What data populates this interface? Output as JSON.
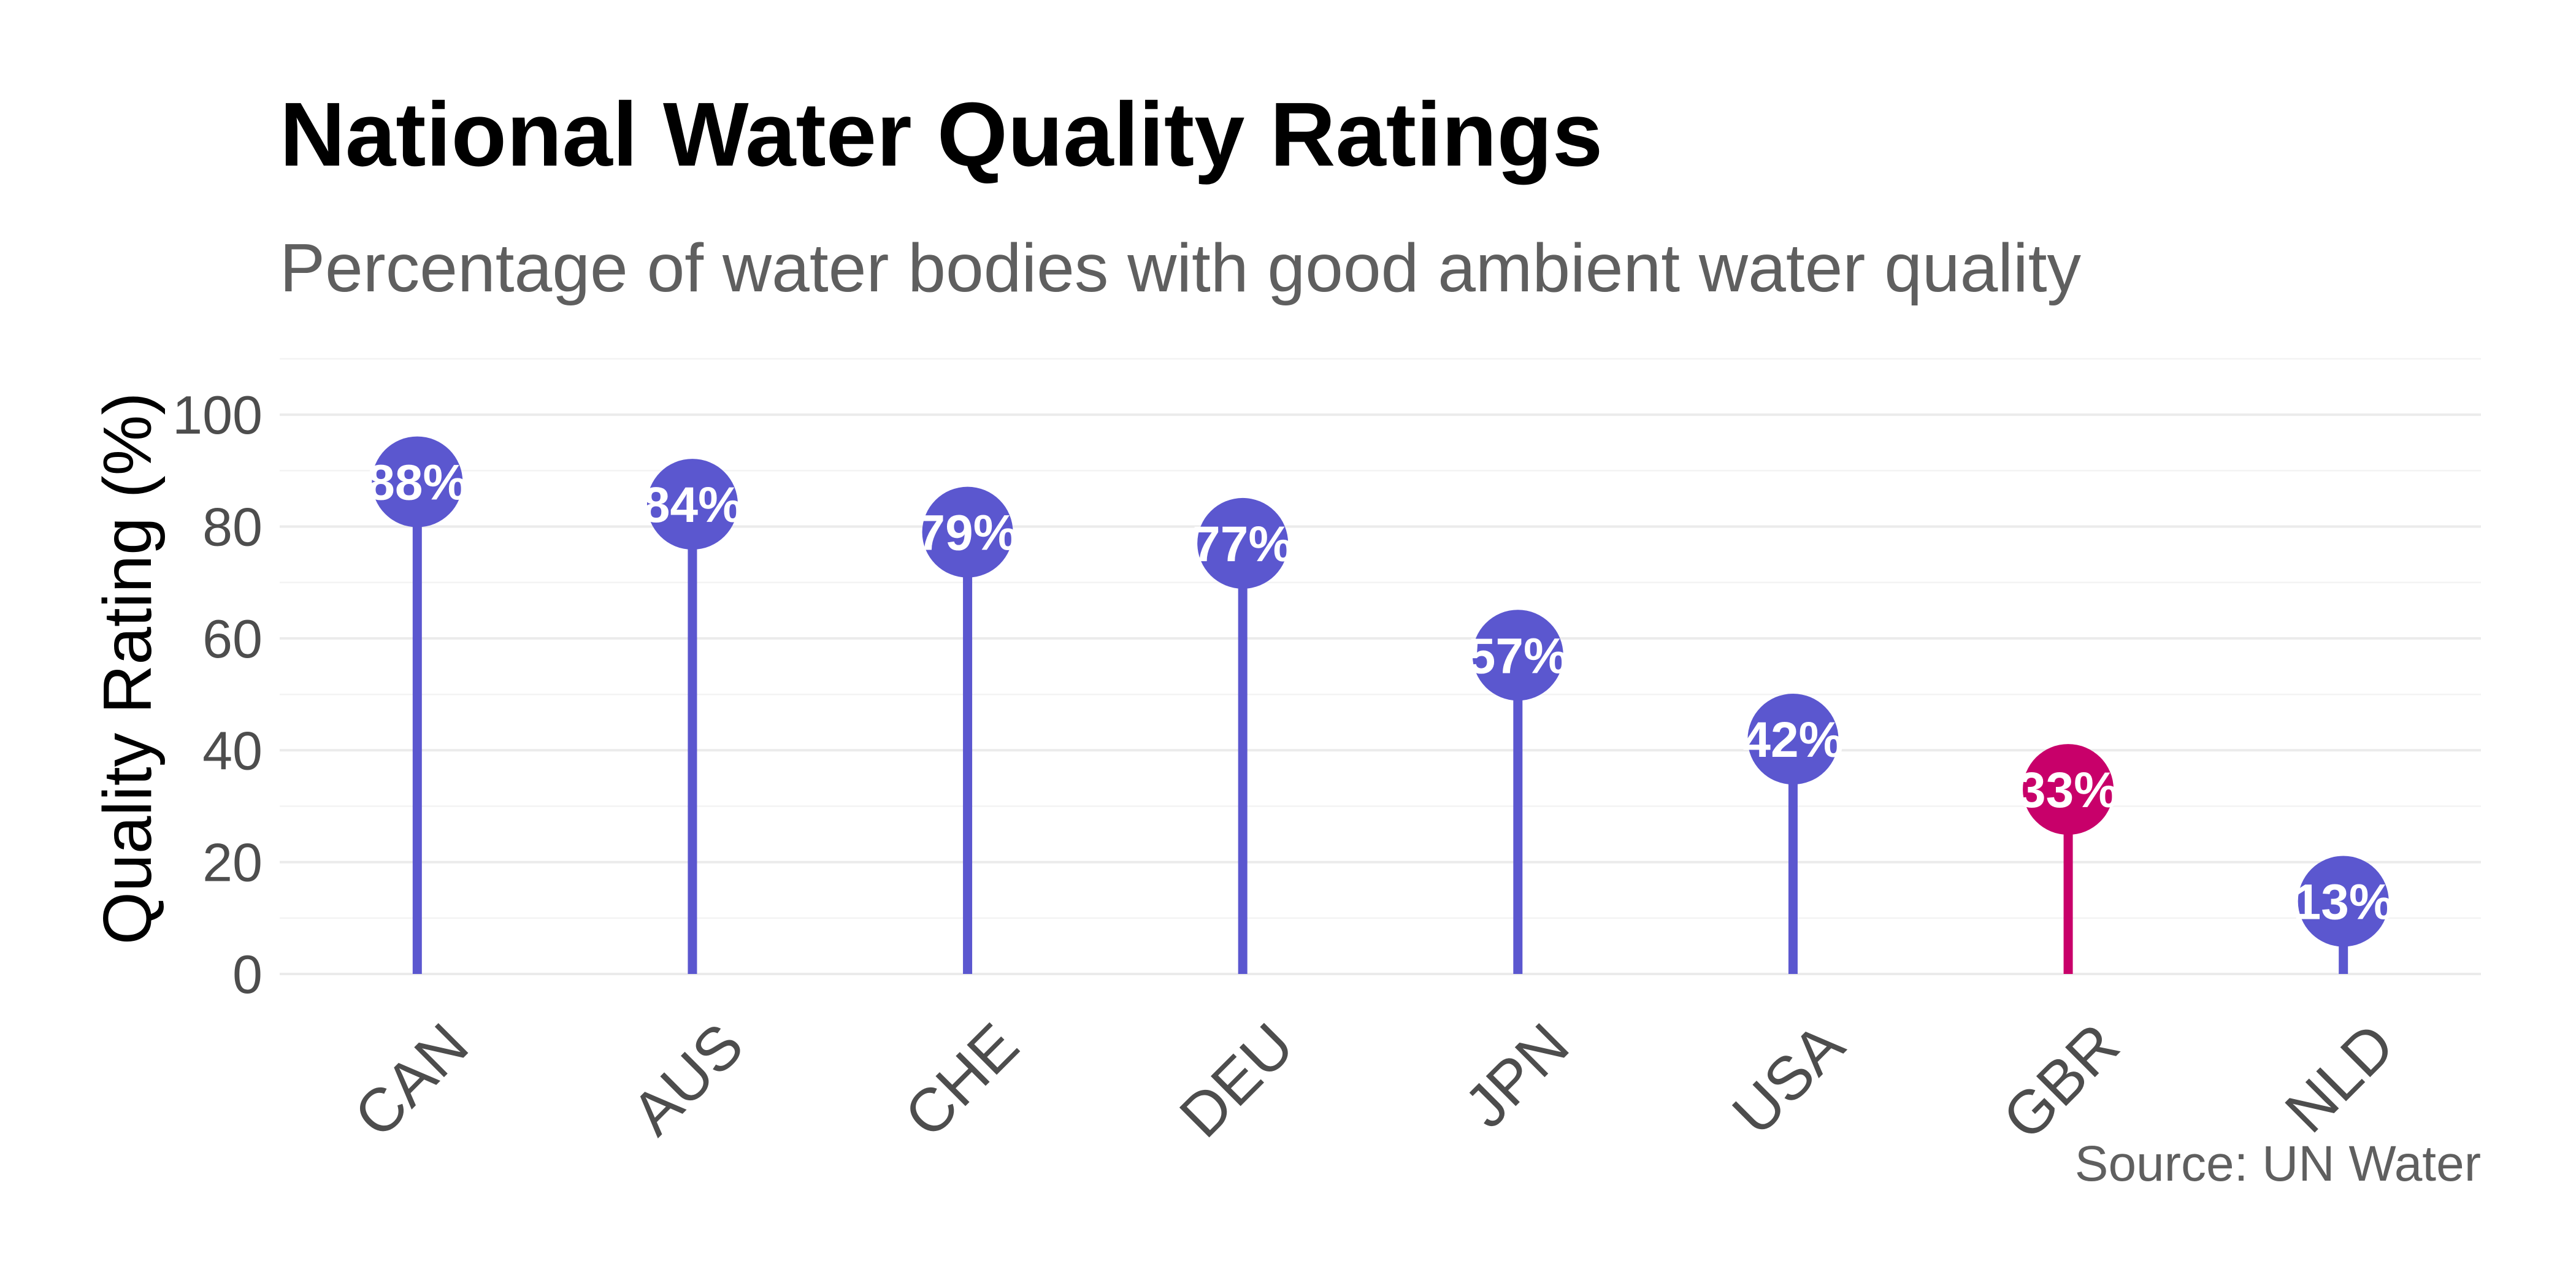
{
  "chart_data": {
    "type": "lollipop",
    "title": "National Water Quality Ratings",
    "subtitle": "Percentage of water bodies with good ambient water quality",
    "ylabel": "Quality Rating (%)",
    "xlabel": "",
    "caption": "Source: UN Water",
    "ylim": [
      0,
      110
    ],
    "yticks": [
      0,
      20,
      40,
      60,
      80,
      100
    ],
    "categories": [
      "CAN",
      "AUS",
      "CHE",
      "DEU",
      "JPN",
      "USA",
      "GBR",
      "NLD"
    ],
    "values": [
      88,
      84,
      79,
      77,
      57,
      42,
      33,
      13
    ],
    "data_labels": [
      "88%",
      "84%",
      "79%",
      "77%",
      "57%",
      "42%",
      "33%",
      "13%"
    ],
    "highlight": "GBR",
    "colors": {
      "default": "#5b57cf",
      "highlight": "#c8006a"
    },
    "grid": true,
    "legend": "none"
  }
}
